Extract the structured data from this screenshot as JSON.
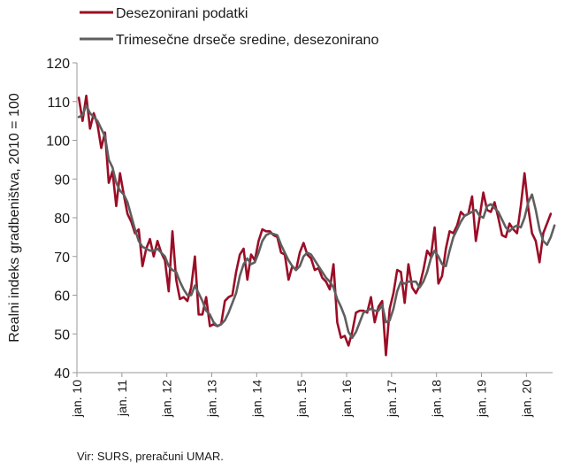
{
  "chart_data": {
    "type": "line",
    "ylabel": "Realni indeks gradbeništva, 2010 = 100",
    "ylim": [
      40,
      120
    ],
    "yticks": [
      40,
      50,
      60,
      70,
      80,
      90,
      100,
      110,
      120
    ],
    "xticks": [
      "jan. 10",
      "jan. 11",
      "jan. 12",
      "jan. 13",
      "jan. 14",
      "jan. 15",
      "jan. 16",
      "jan. 17",
      "jan. 18",
      "jan. 19",
      "jan. 20"
    ],
    "x_start": "jan. 10",
    "x_end": "dec. 20",
    "grid": false,
    "legend_position": "top",
    "series": [
      {
        "name": "Desezonirani podatki",
        "color": "#9b0d26",
        "values": [
          111,
          105,
          111.5,
          103,
          107,
          104,
          98,
          102,
          89,
          92,
          83,
          91.5,
          86,
          81,
          79,
          76,
          77,
          67.5,
          72,
          74.5,
          70,
          74,
          71,
          69,
          61,
          76.5,
          64,
          59,
          59.5,
          58.5,
          62,
          70,
          55,
          55,
          59.5,
          52,
          52.5,
          52,
          52.5,
          58.5,
          59.5,
          60,
          66,
          70.5,
          72,
          64,
          70.5,
          69,
          74,
          77,
          76.5,
          76.5,
          75.5,
          75,
          71,
          70.5,
          64,
          67.5,
          66.5,
          71,
          73.5,
          70.5,
          69.5,
          66.5,
          67,
          64.5,
          63.5,
          61.5,
          68,
          53,
          49,
          49.5,
          47,
          50.5,
          55.5,
          56,
          56,
          55.5,
          59.5,
          53,
          57,
          58.5,
          44.5,
          56.5,
          60.5,
          66.5,
          66,
          58,
          68,
          62,
          60.5,
          62.5,
          66.5,
          71.5,
          70,
          77.5,
          63,
          65,
          72,
          76.5,
          76,
          78,
          81.5,
          80.5,
          81,
          85.5,
          74,
          80,
          86.5,
          82,
          81.5,
          84,
          80,
          75.5,
          75,
          78.5,
          77,
          76,
          83,
          91.5,
          82.5,
          76,
          74,
          68.5,
          76,
          78.5,
          81
        ]
      },
      {
        "name": "Trimesečne drseče sredine, desezonirano",
        "color": "#5f5f5f",
        "values": [
          106,
          106.5,
          109,
          107,
          106,
          105,
          103,
          101,
          95,
          93,
          89,
          87,
          86,
          84,
          80.5,
          77,
          74,
          72.5,
          72,
          71.5,
          71.5,
          72,
          71,
          70,
          67.5,
          66.5,
          66,
          63.5,
          61.5,
          60,
          60,
          62.5,
          60.5,
          58.5,
          56,
          55,
          53,
          52,
          52.5,
          53.5,
          55.5,
          58,
          60.5,
          65,
          68,
          69.5,
          68,
          68.5,
          71,
          74,
          75.5,
          76,
          75.8,
          75.5,
          73,
          71,
          69,
          67.5,
          66.5,
          67.5,
          70,
          71,
          70.5,
          69,
          67.5,
          66,
          64.5,
          63.5,
          62,
          59,
          57,
          54.5,
          50.5,
          49,
          50.5,
          53,
          55.5,
          56,
          56.5,
          56,
          56,
          57.5,
          53,
          53.5,
          56.5,
          61,
          63.5,
          63,
          63.5,
          63.5,
          63.5,
          62,
          63.5,
          66,
          69.5,
          71.5,
          70,
          68,
          67.5,
          71.5,
          75,
          77,
          79,
          80.5,
          81,
          81.5,
          82,
          80.5,
          80,
          83,
          83.5,
          82.5,
          81.5,
          79.5,
          77.5,
          76.5,
          77.5,
          78,
          77.5,
          80,
          84,
          86,
          82,
          77,
          74,
          73,
          75,
          78
        ]
      }
    ]
  },
  "source_text": "Vir: SURS, preračuni UMAR."
}
